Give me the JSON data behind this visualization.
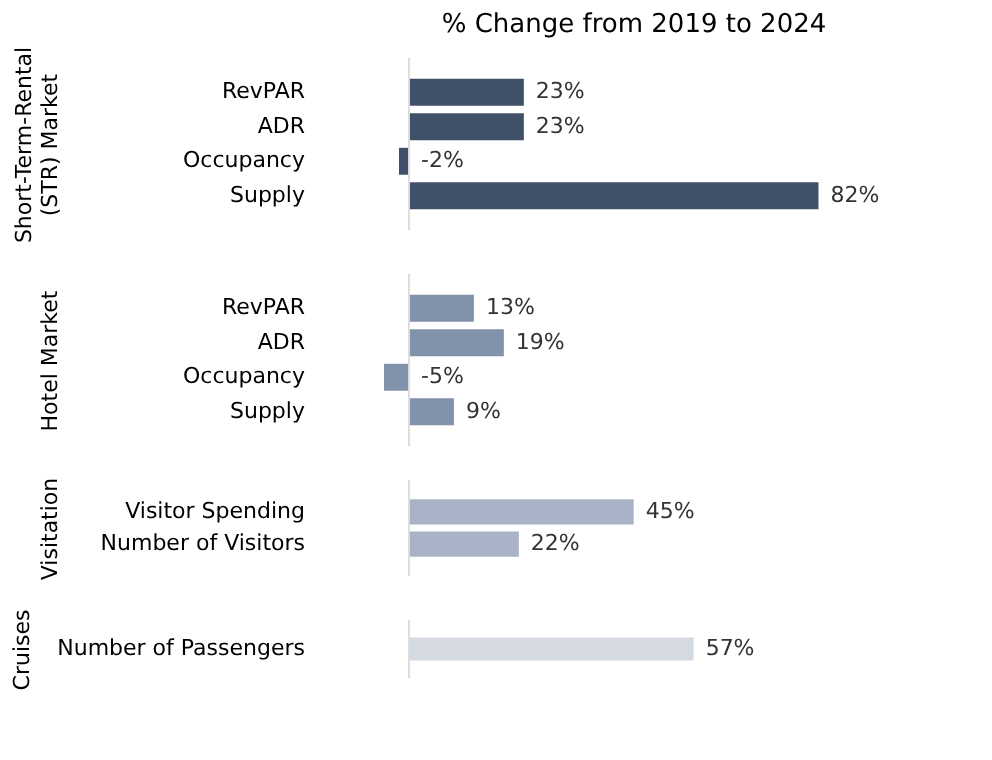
{
  "chart_data": [
    {
      "type": "bar",
      "orientation": "horizontal",
      "title": "% Change from 2019 to 2024",
      "ylabel": "Short-Term-Rental (STR) Market",
      "categories": [
        "RevPAR",
        "ADR",
        "Occupancy",
        "Supply"
      ],
      "values": [
        23,
        23,
        -2,
        82
      ],
      "colors": [
        "#3f5068",
        "#3f5068",
        "#3f5068",
        "#3f5068"
      ],
      "value_labels": [
        "23%",
        "23%",
        "-2%",
        "82%"
      ]
    },
    {
      "type": "bar",
      "orientation": "horizontal",
      "ylabel": "Hotel Market",
      "categories": [
        "RevPAR",
        "ADR",
        "Occupancy",
        "Supply"
      ],
      "values": [
        13,
        19,
        -5,
        9
      ],
      "colors": [
        "#8093aa",
        "#8093aa",
        "#8093aa",
        "#8093aa"
      ],
      "value_labels": [
        "13%",
        "19%",
        "-5%",
        "9%"
      ]
    },
    {
      "type": "bar",
      "orientation": "horizontal",
      "ylabel": "Visitation",
      "categories": [
        "Visitor Spending",
        "Number of Visitors"
      ],
      "values": [
        45,
        22
      ],
      "colors": [
        "#a9b2c6",
        "#a9b2c6"
      ],
      "value_labels": [
        "45%",
        "22%"
      ]
    },
    {
      "type": "bar",
      "orientation": "horizontal",
      "ylabel": "Cruises",
      "categories": [
        "Number of Passengers"
      ],
      "values": [
        57
      ],
      "colors": [
        "#d5dae2"
      ],
      "value_labels": [
        "57%"
      ]
    }
  ]
}
